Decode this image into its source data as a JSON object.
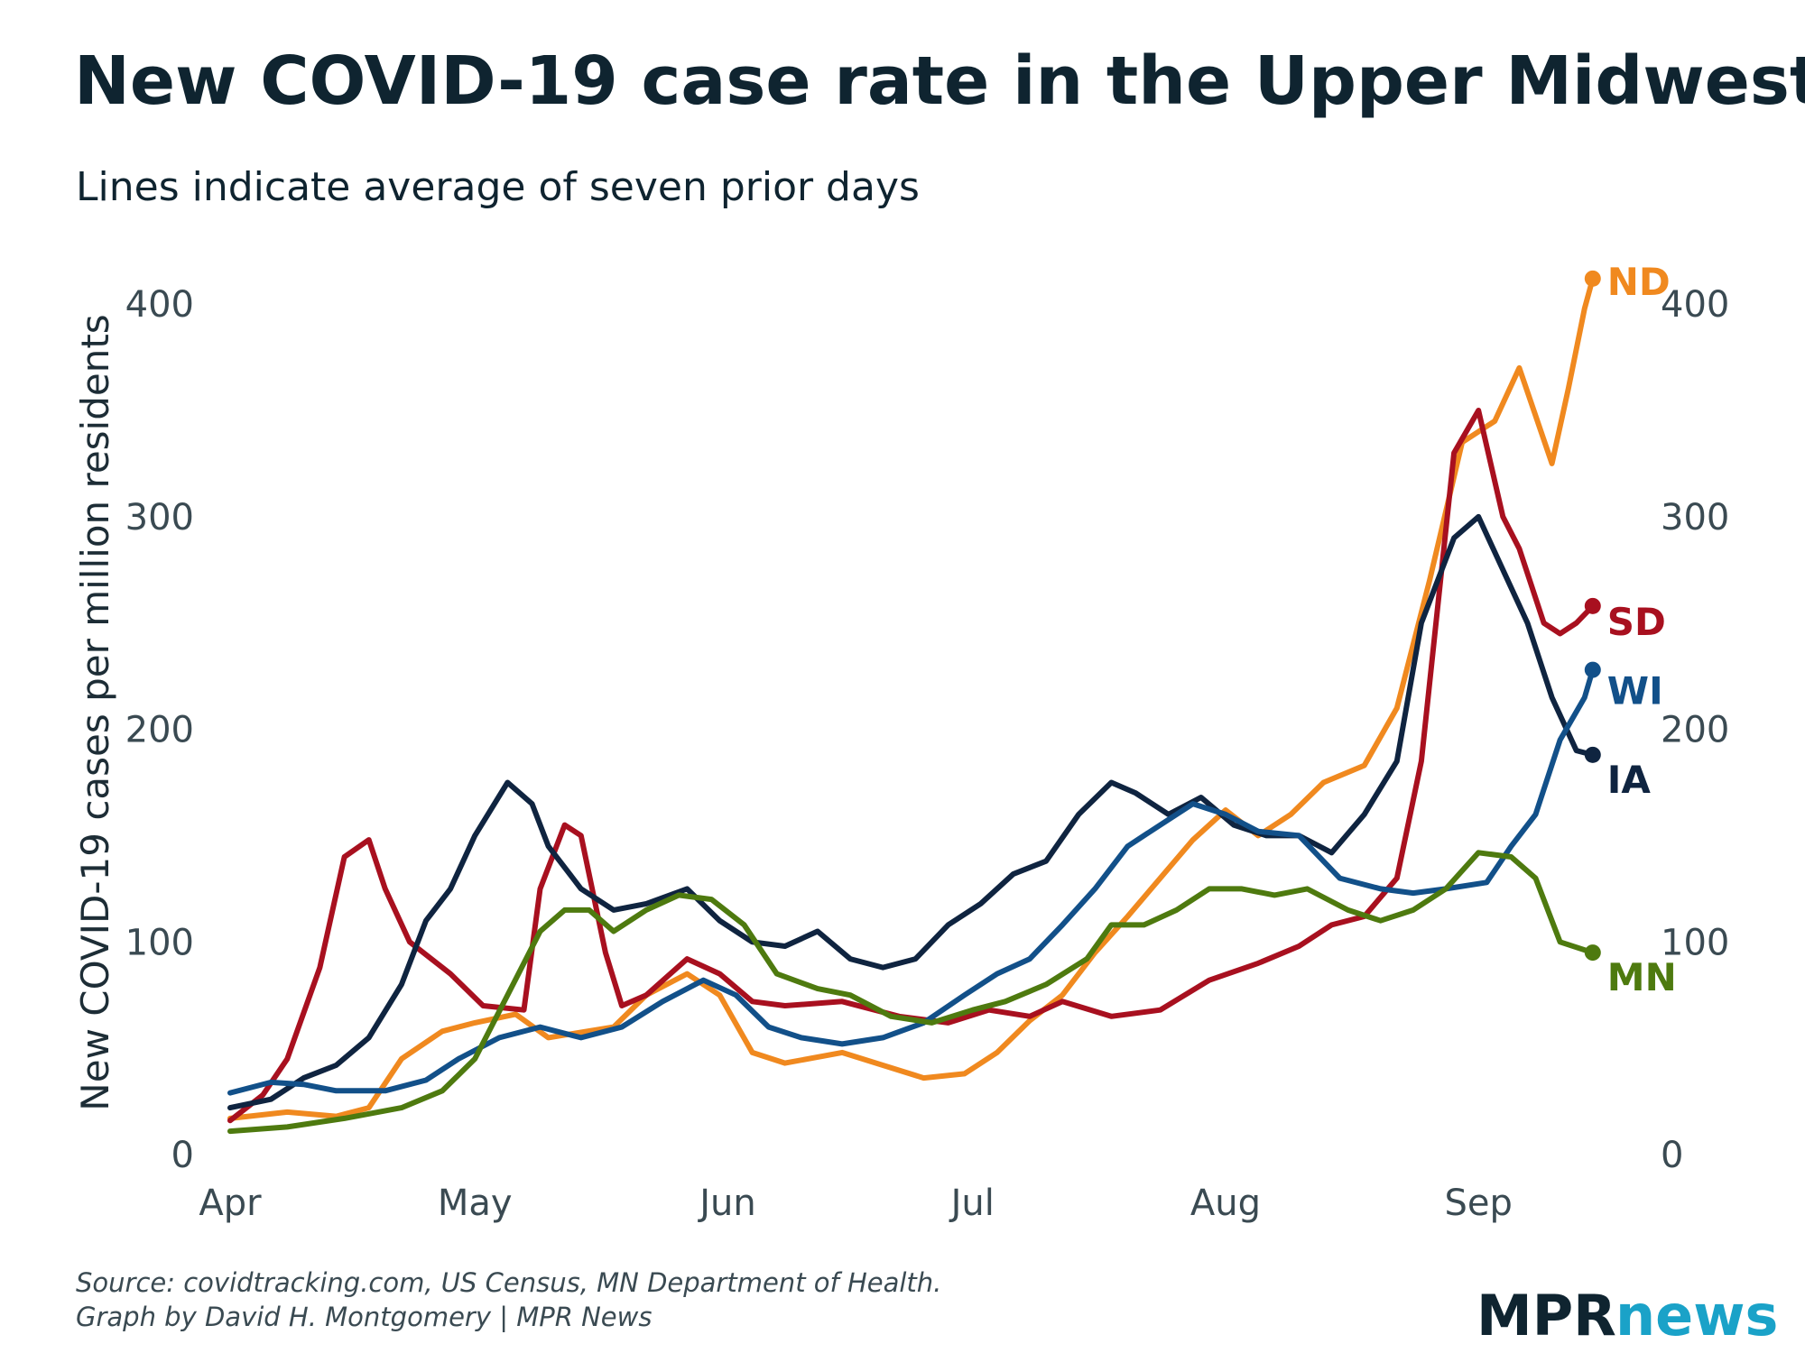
{
  "chart_data": {
    "type": "line",
    "title": "New COVID-19 case rate in the Upper Midwest",
    "subtitle": "Lines indicate average of seven prior days",
    "ylabel": "New COVID-19 cases per million residents",
    "xlabel": "",
    "ylim": [
      0,
      420
    ],
    "yticks": [
      "0",
      "100",
      "200",
      "300",
      "400"
    ],
    "xlim": [
      "2020-04-01",
      "2020-09-20"
    ],
    "xticks": [
      {
        "label": "Apr",
        "date": "2020-04-01"
      },
      {
        "label": "May",
        "date": "2020-05-01"
      },
      {
        "label": "Jun",
        "date": "2020-06-01"
      },
      {
        "label": "Jul",
        "date": "2020-07-01"
      },
      {
        "label": "Aug",
        "date": "2020-08-01"
      },
      {
        "label": "Sep",
        "date": "2020-09-01"
      }
    ],
    "series": [
      {
        "name": "ND",
        "color": "#f0891f",
        "points": [
          [
            "2020-04-01",
            17
          ],
          [
            "2020-04-08",
            20
          ],
          [
            "2020-04-14",
            18
          ],
          [
            "2020-04-18",
            22
          ],
          [
            "2020-04-22",
            45
          ],
          [
            "2020-04-27",
            58
          ],
          [
            "2020-05-01",
            62
          ],
          [
            "2020-05-06",
            66
          ],
          [
            "2020-05-10",
            55
          ],
          [
            "2020-05-18",
            60
          ],
          [
            "2020-05-22",
            75
          ],
          [
            "2020-05-27",
            85
          ],
          [
            "2020-05-31",
            75
          ],
          [
            "2020-06-04",
            48
          ],
          [
            "2020-06-08",
            43
          ],
          [
            "2020-06-15",
            48
          ],
          [
            "2020-06-20",
            42
          ],
          [
            "2020-06-25",
            36
          ],
          [
            "2020-06-30",
            38
          ],
          [
            "2020-07-04",
            48
          ],
          [
            "2020-07-08",
            63
          ],
          [
            "2020-07-12",
            75
          ],
          [
            "2020-07-16",
            95
          ],
          [
            "2020-07-20",
            112
          ],
          [
            "2020-07-24",
            130
          ],
          [
            "2020-07-28",
            148
          ],
          [
            "2020-08-01",
            162
          ],
          [
            "2020-08-05",
            150
          ],
          [
            "2020-08-09",
            160
          ],
          [
            "2020-08-13",
            175
          ],
          [
            "2020-08-18",
            183
          ],
          [
            "2020-08-22",
            210
          ],
          [
            "2020-08-26",
            270
          ],
          [
            "2020-08-30",
            335
          ],
          [
            "2020-09-03",
            345
          ],
          [
            "2020-09-06",
            370
          ],
          [
            "2020-09-10",
            325
          ],
          [
            "2020-09-12",
            360
          ],
          [
            "2020-09-14",
            398
          ],
          [
            "2020-09-15",
            412
          ]
        ]
      },
      {
        "name": "SD",
        "color": "#a8101f",
        "points": [
          [
            "2020-04-01",
            16
          ],
          [
            "2020-04-05",
            28
          ],
          [
            "2020-04-08",
            45
          ],
          [
            "2020-04-12",
            88
          ],
          [
            "2020-04-15",
            140
          ],
          [
            "2020-04-18",
            148
          ],
          [
            "2020-04-20",
            125
          ],
          [
            "2020-04-23",
            100
          ],
          [
            "2020-04-28",
            85
          ],
          [
            "2020-05-02",
            70
          ],
          [
            "2020-05-07",
            68
          ],
          [
            "2020-05-09",
            125
          ],
          [
            "2020-05-12",
            155
          ],
          [
            "2020-05-14",
            150
          ],
          [
            "2020-05-17",
            95
          ],
          [
            "2020-05-19",
            70
          ],
          [
            "2020-05-22",
            75
          ],
          [
            "2020-05-27",
            92
          ],
          [
            "2020-05-31",
            85
          ],
          [
            "2020-06-04",
            72
          ],
          [
            "2020-06-08",
            70
          ],
          [
            "2020-06-15",
            72
          ],
          [
            "2020-06-22",
            65
          ],
          [
            "2020-06-28",
            62
          ],
          [
            "2020-07-03",
            68
          ],
          [
            "2020-07-08",
            65
          ],
          [
            "2020-07-12",
            72
          ],
          [
            "2020-07-18",
            65
          ],
          [
            "2020-07-24",
            68
          ],
          [
            "2020-07-30",
            82
          ],
          [
            "2020-08-05",
            90
          ],
          [
            "2020-08-10",
            98
          ],
          [
            "2020-08-14",
            108
          ],
          [
            "2020-08-18",
            112
          ],
          [
            "2020-08-22",
            130
          ],
          [
            "2020-08-25",
            185
          ],
          [
            "2020-08-29",
            330
          ],
          [
            "2020-09-01",
            350
          ],
          [
            "2020-09-04",
            300
          ],
          [
            "2020-09-06",
            285
          ],
          [
            "2020-09-09",
            250
          ],
          [
            "2020-09-11",
            245
          ],
          [
            "2020-09-13",
            250
          ],
          [
            "2020-09-15",
            258
          ]
        ]
      },
      {
        "name": "IA",
        "color": "#0f2440",
        "points": [
          [
            "2020-04-01",
            22
          ],
          [
            "2020-04-06",
            26
          ],
          [
            "2020-04-10",
            36
          ],
          [
            "2020-04-14",
            42
          ],
          [
            "2020-04-18",
            55
          ],
          [
            "2020-04-22",
            80
          ],
          [
            "2020-04-25",
            110
          ],
          [
            "2020-04-28",
            125
          ],
          [
            "2020-05-01",
            150
          ],
          [
            "2020-05-05",
            175
          ],
          [
            "2020-05-08",
            165
          ],
          [
            "2020-05-10",
            145
          ],
          [
            "2020-05-14",
            125
          ],
          [
            "2020-05-18",
            115
          ],
          [
            "2020-05-22",
            118
          ],
          [
            "2020-05-27",
            125
          ],
          [
            "2020-05-31",
            110
          ],
          [
            "2020-06-04",
            100
          ],
          [
            "2020-06-08",
            98
          ],
          [
            "2020-06-12",
            105
          ],
          [
            "2020-06-16",
            92
          ],
          [
            "2020-06-20",
            88
          ],
          [
            "2020-06-24",
            92
          ],
          [
            "2020-06-28",
            108
          ],
          [
            "2020-07-02",
            118
          ],
          [
            "2020-07-06",
            132
          ],
          [
            "2020-07-10",
            138
          ],
          [
            "2020-07-14",
            160
          ],
          [
            "2020-07-18",
            175
          ],
          [
            "2020-07-21",
            170
          ],
          [
            "2020-07-25",
            160
          ],
          [
            "2020-07-29",
            168
          ],
          [
            "2020-08-02",
            155
          ],
          [
            "2020-08-06",
            150
          ],
          [
            "2020-08-10",
            150
          ],
          [
            "2020-08-14",
            142
          ],
          [
            "2020-08-18",
            160
          ],
          [
            "2020-08-22",
            185
          ],
          [
            "2020-08-25",
            250
          ],
          [
            "2020-08-29",
            290
          ],
          [
            "2020-09-01",
            300
          ],
          [
            "2020-09-04",
            275
          ],
          [
            "2020-09-07",
            250
          ],
          [
            "2020-09-10",
            215
          ],
          [
            "2020-09-13",
            190
          ],
          [
            "2020-09-15",
            188
          ]
        ]
      },
      {
        "name": "WI",
        "color": "#125089",
        "points": [
          [
            "2020-04-01",
            29
          ],
          [
            "2020-04-06",
            34
          ],
          [
            "2020-04-10",
            33
          ],
          [
            "2020-04-14",
            30
          ],
          [
            "2020-04-20",
            30
          ],
          [
            "2020-04-25",
            35
          ],
          [
            "2020-04-29",
            45
          ],
          [
            "2020-05-04",
            55
          ],
          [
            "2020-05-09",
            60
          ],
          [
            "2020-05-14",
            55
          ],
          [
            "2020-05-19",
            60
          ],
          [
            "2020-05-24",
            72
          ],
          [
            "2020-05-29",
            82
          ],
          [
            "2020-06-02",
            75
          ],
          [
            "2020-06-06",
            60
          ],
          [
            "2020-06-10",
            55
          ],
          [
            "2020-06-15",
            52
          ],
          [
            "2020-06-20",
            55
          ],
          [
            "2020-06-25",
            62
          ],
          [
            "2020-06-30",
            75
          ],
          [
            "2020-07-04",
            85
          ],
          [
            "2020-07-08",
            92
          ],
          [
            "2020-07-12",
            108
          ],
          [
            "2020-07-16",
            125
          ],
          [
            "2020-07-20",
            145
          ],
          [
            "2020-07-24",
            155
          ],
          [
            "2020-07-28",
            165
          ],
          [
            "2020-08-01",
            160
          ],
          [
            "2020-08-05",
            152
          ],
          [
            "2020-08-10",
            150
          ],
          [
            "2020-08-15",
            130
          ],
          [
            "2020-08-20",
            125
          ],
          [
            "2020-08-24",
            123
          ],
          [
            "2020-08-28",
            125
          ],
          [
            "2020-09-02",
            128
          ],
          [
            "2020-09-05",
            145
          ],
          [
            "2020-09-08",
            160
          ],
          [
            "2020-09-11",
            195
          ],
          [
            "2020-09-14",
            215
          ],
          [
            "2020-09-15",
            228
          ]
        ]
      },
      {
        "name": "MN",
        "color": "#4e7a0f",
        "points": [
          [
            "2020-04-01",
            11
          ],
          [
            "2020-04-08",
            13
          ],
          [
            "2020-04-15",
            17
          ],
          [
            "2020-04-22",
            22
          ],
          [
            "2020-04-27",
            30
          ],
          [
            "2020-05-01",
            45
          ],
          [
            "2020-05-05",
            75
          ],
          [
            "2020-05-09",
            105
          ],
          [
            "2020-05-12",
            115
          ],
          [
            "2020-05-15",
            115
          ],
          [
            "2020-05-18",
            105
          ],
          [
            "2020-05-22",
            115
          ],
          [
            "2020-05-26",
            122
          ],
          [
            "2020-05-30",
            120
          ],
          [
            "2020-06-03",
            108
          ],
          [
            "2020-06-07",
            85
          ],
          [
            "2020-06-12",
            78
          ],
          [
            "2020-06-16",
            75
          ],
          [
            "2020-06-21",
            65
          ],
          [
            "2020-06-26",
            62
          ],
          [
            "2020-07-01",
            68
          ],
          [
            "2020-07-05",
            72
          ],
          [
            "2020-07-10",
            80
          ],
          [
            "2020-07-15",
            92
          ],
          [
            "2020-07-18",
            108
          ],
          [
            "2020-07-22",
            108
          ],
          [
            "2020-07-26",
            115
          ],
          [
            "2020-07-30",
            125
          ],
          [
            "2020-08-03",
            125
          ],
          [
            "2020-08-07",
            122
          ],
          [
            "2020-08-11",
            125
          ],
          [
            "2020-08-16",
            115
          ],
          [
            "2020-08-20",
            110
          ],
          [
            "2020-08-24",
            115
          ],
          [
            "2020-08-28",
            125
          ],
          [
            "2020-09-01",
            142
          ],
          [
            "2020-09-05",
            140
          ],
          [
            "2020-09-08",
            130
          ],
          [
            "2020-09-11",
            100
          ],
          [
            "2020-09-15",
            95
          ]
        ]
      }
    ],
    "series_labels": [
      "ND",
      "SD",
      "WI",
      "IA",
      "MN"
    ]
  },
  "source_line1": "Source: covidtracking.com, US Census, MN Department of Health.",
  "source_line2": "Graph by David H. Montgomery | MPR News",
  "logo": {
    "part1": "MPR",
    "part2": "news",
    "accent": "#1aa2c8"
  }
}
